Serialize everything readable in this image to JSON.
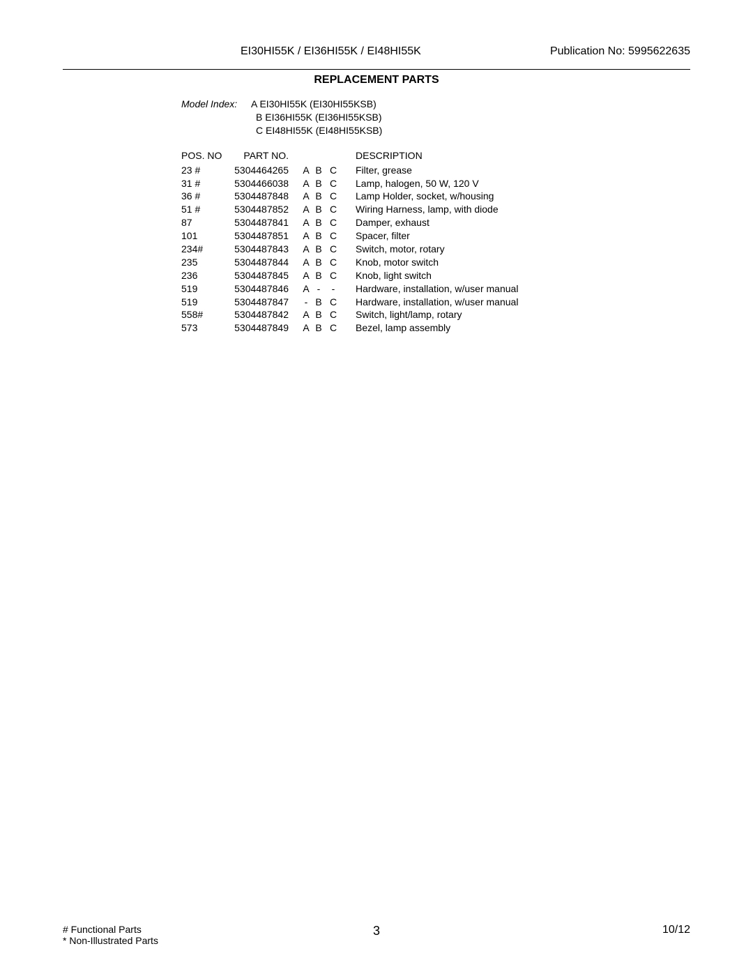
{
  "header": {
    "models": "EI30HI55K / EI36HI55K / EI48HI55K",
    "publication_label": "Publication No:  5995622635"
  },
  "section_title": "REPLACEMENT PARTS",
  "model_index": {
    "label": "Model Index:",
    "items": [
      "A EI30HI55K (EI30HI55KSB)",
      "B EI36HI55K (EI36HI55KSB)",
      "C EI48HI55K (EI48HI55KSB)"
    ]
  },
  "columns": {
    "pos": "POS. NO",
    "partno": "PART NO.",
    "desc": "DESCRIPTION"
  },
  "rows": [
    {
      "pos": "23 #",
      "partno": "5304464265",
      "a": "A",
      "b": "B",
      "c": "C",
      "desc": "Filter, grease"
    },
    {
      "pos": "31 #",
      "partno": "5304466038",
      "a": "A",
      "b": "B",
      "c": "C",
      "desc": "Lamp, halogen, 50 W, 120 V"
    },
    {
      "pos": "36 #",
      "partno": "5304487848",
      "a": "A",
      "b": "B",
      "c": "C",
      "desc": "Lamp Holder, socket, w/housing"
    },
    {
      "pos": "51 #",
      "partno": "5304487852",
      "a": "A",
      "b": "B",
      "c": "C",
      "desc": "Wiring Harness, lamp, with diode"
    },
    {
      "pos": "87",
      "partno": "5304487841",
      "a": "A",
      "b": "B",
      "c": "C",
      "desc": "Damper, exhaust"
    },
    {
      "pos": "101",
      "partno": "5304487851",
      "a": "A",
      "b": "B",
      "c": "C",
      "desc": "Spacer, filter"
    },
    {
      "pos": "234#",
      "partno": "5304487843",
      "a": "A",
      "b": "B",
      "c": "C",
      "desc": "Switch, motor, rotary"
    },
    {
      "pos": "235",
      "partno": "5304487844",
      "a": "A",
      "b": "B",
      "c": "C",
      "desc": "Knob, motor switch"
    },
    {
      "pos": "236",
      "partno": "5304487845",
      "a": "A",
      "b": "B",
      "c": "C",
      "desc": "Knob, light switch"
    },
    {
      "pos": "519",
      "partno": "5304487846",
      "a": "A",
      "b": "-",
      "c": "-",
      "desc": "Hardware, installation, w/user manual"
    },
    {
      "pos": "519",
      "partno": "5304487847",
      "a": "-",
      "b": "B",
      "c": "C",
      "desc": "Hardware, installation, w/user manual"
    },
    {
      "pos": "558#",
      "partno": "5304487842",
      "a": "A",
      "b": "B",
      "c": "C",
      "desc": "Switch, light/lamp, rotary"
    },
    {
      "pos": "573",
      "partno": "5304487849",
      "a": "A",
      "b": "B",
      "c": "C",
      "desc": "Bezel, lamp assembly"
    }
  ],
  "footer": {
    "note1": "# Functional Parts",
    "note2": "* Non-Illustrated Parts",
    "page": "3",
    "date": "10/12"
  }
}
